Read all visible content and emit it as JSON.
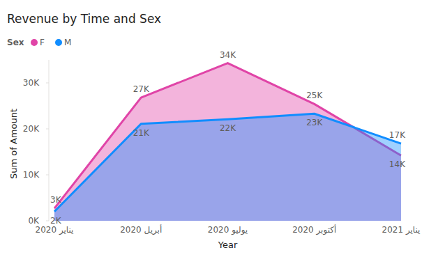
{
  "chart_data": {
    "type": "area",
    "title": "Revenue by Time and Sex",
    "legend_title": "Sex",
    "x_label": "Year",
    "y_label": "Sum of Amount",
    "categories": [
      "يناير 2020",
      "أبريل 2020",
      "يوليو 2020",
      "أكتوبر 2020",
      "يناير 2021"
    ],
    "series": [
      {
        "name": "F",
        "color": "#E044A7",
        "values": [
          2700,
          26800,
          34300,
          25400,
          14200
        ],
        "value_labels": [
          "3K",
          "27K",
          "34K",
          "25K",
          "14K"
        ]
      },
      {
        "name": "M",
        "color": "#118DFF",
        "values": [
          2000,
          21100,
          22100,
          23300,
          16800
        ],
        "value_labels": [
          "2K",
          "21K",
          "22K",
          "23K",
          "17K"
        ]
      }
    ],
    "ylim": [
      0,
      35000
    ],
    "yticks": [
      {
        "value": 0,
        "label": "0K"
      },
      {
        "value": 10000,
        "label": "10K"
      },
      {
        "value": 20000,
        "label": "20K"
      },
      {
        "value": 30000,
        "label": "30K"
      }
    ],
    "grid": false,
    "legend": "top-left",
    "data_labels": true
  }
}
